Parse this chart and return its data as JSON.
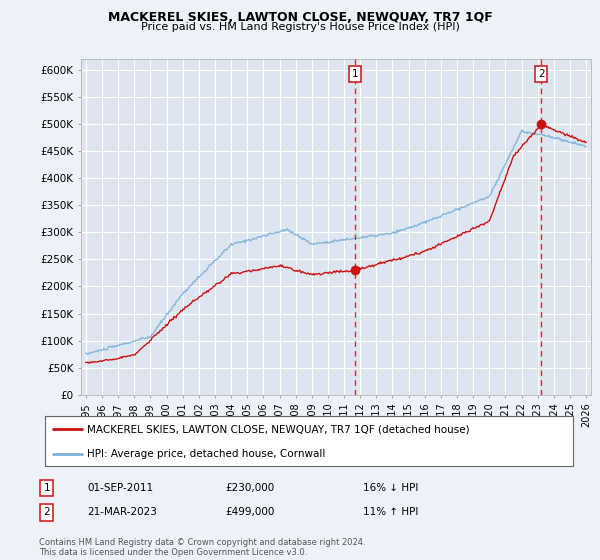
{
  "title": "MACKEREL SKIES, LAWTON CLOSE, NEWQUAY, TR7 1QF",
  "subtitle": "Price paid vs. HM Land Registry's House Price Index (HPI)",
  "ylabel_ticks": [
    "£0",
    "£50K",
    "£100K",
    "£150K",
    "£200K",
    "£250K",
    "£300K",
    "£350K",
    "£400K",
    "£450K",
    "£500K",
    "£550K",
    "£600K"
  ],
  "ytick_values": [
    0,
    50000,
    100000,
    150000,
    200000,
    250000,
    300000,
    350000,
    400000,
    450000,
    500000,
    550000,
    600000
  ],
  "ylim": [
    0,
    620000
  ],
  "background_color": "#eef2f8",
  "plot_bg_color": "#dde5f0",
  "grid_color": "#ffffff",
  "hpi_color": "#7ab0d8",
  "price_color": "#cc1111",
  "vline_color": "#cc1111",
  "sale1_price": 230000,
  "sale1_x": 2011.67,
  "sale2_price": 499000,
  "sale2_x": 2023.22,
  "legend_property": "MACKEREL SKIES, LAWTON CLOSE, NEWQUAY, TR7 1QF (detached house)",
  "legend_hpi": "HPI: Average price, detached house, Cornwall",
  "footer": "Contains HM Land Registry data © Crown copyright and database right 2024.\nThis data is licensed under the Open Government Licence v3.0.",
  "table_row1": [
    "1",
    "01-SEP-2011",
    "£230,000",
    "16% ↓ HPI"
  ],
  "table_row2": [
    "2",
    "21-MAR-2023",
    "£499,000",
    "11% ↑ HPI"
  ],
  "x_start": 1995,
  "x_end": 2026,
  "xtick_years": [
    1995,
    1996,
    1997,
    1998,
    1999,
    2000,
    2001,
    2002,
    2003,
    2004,
    2005,
    2006,
    2007,
    2008,
    2009,
    2010,
    2011,
    2012,
    2013,
    2014,
    2015,
    2016,
    2017,
    2018,
    2019,
    2020,
    2021,
    2022,
    2023,
    2024,
    2025,
    2026
  ]
}
